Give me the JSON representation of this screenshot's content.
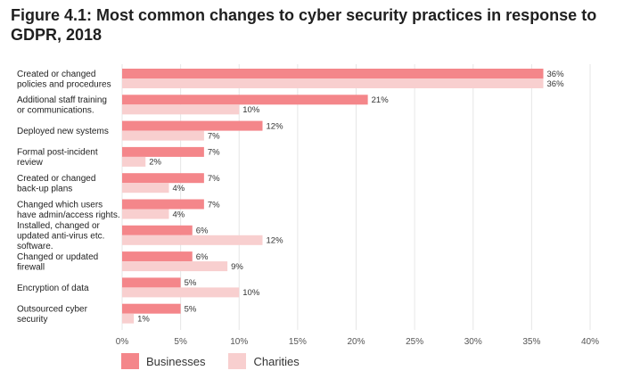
{
  "title": "Figure 4.1: Most common changes to cyber security practices in response to GDPR, 2018",
  "colors": {
    "businesses": "#f4868a",
    "charities": "#f8cfcf",
    "grid": "#e6e6e6"
  },
  "chart_data": {
    "type": "bar",
    "orientation": "horizontal",
    "title": "Figure 4.1: Most common changes to cyber security practices in response to GDPR, 2018",
    "xlabel": "",
    "ylabel": "",
    "xlim": [
      0,
      40
    ],
    "xticks": [
      0,
      5,
      10,
      15,
      20,
      25,
      30,
      35,
      40
    ],
    "xtick_labels": [
      "0%",
      "5%",
      "10%",
      "15%",
      "20%",
      "25%",
      "30%",
      "35%",
      "40%"
    ],
    "categories": [
      [
        "Created or changed",
        "policies and procedures"
      ],
      [
        "Additional staff training",
        "or communications."
      ],
      [
        "Deployed new systems"
      ],
      [
        "Formal post-incident",
        "review"
      ],
      [
        "Created or changed",
        "back-up plans"
      ],
      [
        "Changed which users",
        "have admin/access rights."
      ],
      [
        "Installed, changed or",
        "updated anti-virus etc.",
        "software."
      ],
      [
        "Changed or updated",
        "firewall"
      ],
      [
        "Encryption of data"
      ],
      [
        "Outsourced cyber",
        "security"
      ]
    ],
    "series": [
      {
        "name": "Businesses",
        "values": [
          36,
          21,
          12,
          7,
          7,
          7,
          6,
          6,
          5,
          5
        ],
        "labels": [
          "36%",
          "21%",
          "12%",
          "7%",
          "7%",
          "7%",
          "6%",
          "6%",
          "5%",
          "5%"
        ]
      },
      {
        "name": "Charities",
        "values": [
          36,
          10,
          7,
          2,
          4,
          4,
          12,
          9,
          10,
          1
        ],
        "labels": [
          "36%",
          "10%",
          "7%",
          "2%",
          "4%",
          "4%",
          "12%",
          "9%",
          "10%",
          "1%"
        ]
      }
    ],
    "legend": [
      "Businesses",
      "Charities"
    ],
    "legend_position": "bottom-left",
    "grid": true
  }
}
